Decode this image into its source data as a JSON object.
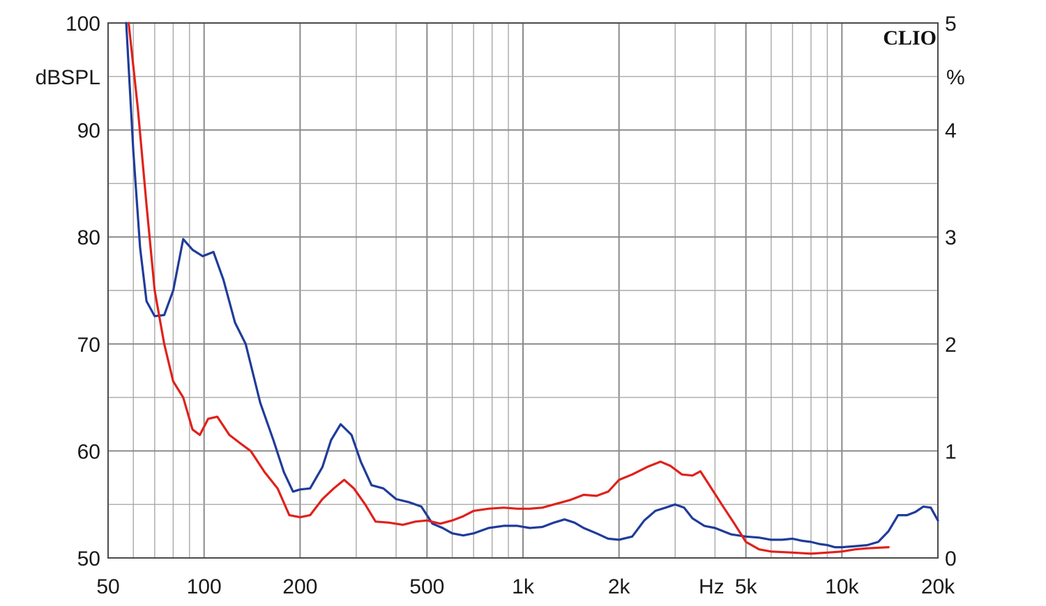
{
  "brand": "CLIO",
  "chart_data": {
    "type": "line",
    "xscale": "log",
    "xlim": [
      50,
      20000
    ],
    "ylim": [
      50,
      100
    ],
    "y2lim": [
      0,
      5
    ],
    "grid": true,
    "ylabel": "dBSPL",
    "y2label": "%",
    "xunit": "Hz",
    "yticks": [
      50,
      60,
      70,
      80,
      90,
      100
    ],
    "y2ticks": [
      0,
      1,
      2,
      3,
      4,
      5
    ],
    "xticks": [
      {
        "value": 50,
        "label": "50"
      },
      {
        "value": 100,
        "label": "100"
      },
      {
        "value": 200,
        "label": "200"
      },
      {
        "value": 500,
        "label": "500"
      },
      {
        "value": 1000,
        "label": "1k"
      },
      {
        "value": 2000,
        "label": "2k"
      },
      {
        "value": 5000,
        "label": "5k"
      },
      {
        "value": 10000,
        "label": "10k"
      },
      {
        "value": 20000,
        "label": "20k"
      }
    ],
    "series": [
      {
        "color": "#1f3c9a",
        "points": [
          [
            57,
            100
          ],
          [
            60,
            88
          ],
          [
            63,
            79
          ],
          [
            66,
            74
          ],
          [
            70,
            72.6
          ],
          [
            75,
            72.7
          ],
          [
            80,
            75
          ],
          [
            86,
            79.8
          ],
          [
            92,
            78.8
          ],
          [
            99,
            78.2
          ],
          [
            107,
            78.6
          ],
          [
            115,
            76
          ],
          [
            125,
            72
          ],
          [
            135,
            70
          ],
          [
            150,
            64.5
          ],
          [
            165,
            61
          ],
          [
            178,
            58
          ],
          [
            190,
            56.2
          ],
          [
            200,
            56.4
          ],
          [
            215,
            56.5
          ],
          [
            235,
            58.5
          ],
          [
            250,
            61
          ],
          [
            268,
            62.5
          ],
          [
            290,
            61.5
          ],
          [
            310,
            59
          ],
          [
            335,
            56.8
          ],
          [
            365,
            56.5
          ],
          [
            400,
            55.5
          ],
          [
            440,
            55.2
          ],
          [
            480,
            54.8
          ],
          [
            520,
            53.2
          ],
          [
            560,
            52.8
          ],
          [
            600,
            52.3
          ],
          [
            650,
            52.1
          ],
          [
            700,
            52.3
          ],
          [
            780,
            52.8
          ],
          [
            870,
            53
          ],
          [
            960,
            53
          ],
          [
            1050,
            52.8
          ],
          [
            1150,
            52.9
          ],
          [
            1250,
            53.3
          ],
          [
            1350,
            53.6
          ],
          [
            1450,
            53.3
          ],
          [
            1550,
            52.8
          ],
          [
            1700,
            52.3
          ],
          [
            1850,
            51.8
          ],
          [
            2000,
            51.7
          ],
          [
            2200,
            52
          ],
          [
            2400,
            53.5
          ],
          [
            2600,
            54.4
          ],
          [
            2800,
            54.7
          ],
          [
            3000,
            55
          ],
          [
            3200,
            54.7
          ],
          [
            3400,
            53.7
          ],
          [
            3700,
            53
          ],
          [
            4000,
            52.8
          ],
          [
            4500,
            52.2
          ],
          [
            5000,
            52
          ],
          [
            5500,
            51.9
          ],
          [
            6000,
            51.7
          ],
          [
            6500,
            51.7
          ],
          [
            7000,
            51.8
          ],
          [
            7500,
            51.6
          ],
          [
            8000,
            51.5
          ],
          [
            8500,
            51.3
          ],
          [
            9000,
            51.2
          ],
          [
            9500,
            51
          ],
          [
            10000,
            51
          ],
          [
            11000,
            51.1
          ],
          [
            12000,
            51.2
          ],
          [
            13000,
            51.5
          ],
          [
            14000,
            52.5
          ],
          [
            15000,
            54
          ],
          [
            16000,
            54
          ],
          [
            17000,
            54.3
          ],
          [
            18000,
            54.8
          ],
          [
            19000,
            54.7
          ],
          [
            20000,
            53.5
          ]
        ]
      },
      {
        "color": "#e0211b",
        "points": [
          [
            58,
            100
          ],
          [
            62,
            92
          ],
          [
            66,
            83
          ],
          [
            70,
            75
          ],
          [
            75,
            70
          ],
          [
            80,
            66.5
          ],
          [
            86,
            65
          ],
          [
            92,
            62
          ],
          [
            97,
            61.5
          ],
          [
            103,
            63
          ],
          [
            110,
            63.2
          ],
          [
            120,
            61.5
          ],
          [
            130,
            60.7
          ],
          [
            140,
            60
          ],
          [
            155,
            58
          ],
          [
            170,
            56.5
          ],
          [
            185,
            54
          ],
          [
            200,
            53.8
          ],
          [
            215,
            54
          ],
          [
            235,
            55.5
          ],
          [
            255,
            56.5
          ],
          [
            275,
            57.3
          ],
          [
            295,
            56.5
          ],
          [
            320,
            55
          ],
          [
            345,
            53.4
          ],
          [
            380,
            53.3
          ],
          [
            420,
            53.1
          ],
          [
            460,
            53.4
          ],
          [
            500,
            53.5
          ],
          [
            550,
            53.2
          ],
          [
            600,
            53.5
          ],
          [
            650,
            53.9
          ],
          [
            700,
            54.4
          ],
          [
            780,
            54.6
          ],
          [
            870,
            54.7
          ],
          [
            960,
            54.6
          ],
          [
            1050,
            54.6
          ],
          [
            1150,
            54.7
          ],
          [
            1250,
            55
          ],
          [
            1400,
            55.4
          ],
          [
            1550,
            55.9
          ],
          [
            1700,
            55.8
          ],
          [
            1850,
            56.2
          ],
          [
            2000,
            57.3
          ],
          [
            2200,
            57.8
          ],
          [
            2450,
            58.5
          ],
          [
            2700,
            59
          ],
          [
            2900,
            58.6
          ],
          [
            3150,
            57.8
          ],
          [
            3400,
            57.7
          ],
          [
            3600,
            58.1
          ],
          [
            3900,
            56.5
          ],
          [
            4200,
            55
          ],
          [
            4600,
            53.2
          ],
          [
            5000,
            51.5
          ],
          [
            5500,
            50.8
          ],
          [
            6000,
            50.6
          ],
          [
            7000,
            50.5
          ],
          [
            8000,
            50.4
          ],
          [
            9000,
            50.5
          ],
          [
            10000,
            50.6
          ],
          [
            11000,
            50.8
          ],
          [
            12000,
            50.9
          ],
          [
            14000,
            51
          ]
        ]
      }
    ]
  }
}
